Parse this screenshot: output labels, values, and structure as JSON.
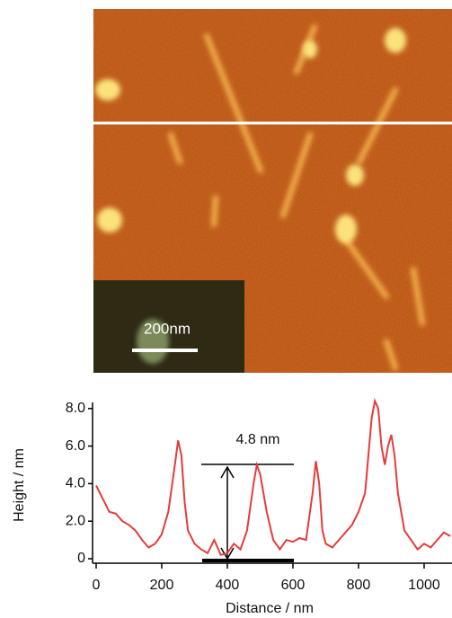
{
  "image": {
    "scale_bar_label": "200nm"
  },
  "chart_data": {
    "type": "line",
    "annotation": "4.8 nm",
    "x_label": "Distance / nm",
    "y_label": "Height / nm",
    "x": [
      0,
      20,
      40,
      60,
      80,
      100,
      120,
      140,
      160,
      180,
      200,
      220,
      240,
      250,
      260,
      270,
      280,
      300,
      320,
      340,
      360,
      380,
      400,
      420,
      440,
      460,
      480,
      490,
      500,
      520,
      540,
      560,
      580,
      600,
      620,
      640,
      660,
      670,
      680,
      690,
      700,
      720,
      740,
      760,
      780,
      800,
      820,
      840,
      850,
      860,
      870,
      880,
      890,
      900,
      910,
      920,
      940,
      960,
      980,
      1000,
      1020,
      1040,
      1060,
      1080
    ],
    "series": [
      {
        "color": "#e63b3b",
        "values": [
          3.9,
          3.2,
          2.5,
          2.4,
          2.0,
          1.8,
          1.5,
          1.0,
          0.6,
          0.8,
          1.3,
          2.5,
          5.0,
          6.3,
          5.5,
          3.0,
          1.5,
          0.8,
          0.5,
          0.3,
          1.0,
          0.2,
          0.3,
          0.8,
          0.5,
          1.5,
          4.0,
          5.0,
          4.5,
          2.5,
          1.0,
          0.5,
          1.0,
          0.9,
          1.1,
          1.0,
          3.5,
          5.2,
          4.0,
          1.5,
          0.8,
          0.6,
          1.0,
          1.4,
          1.8,
          2.5,
          3.5,
          7.5,
          8.4,
          8.0,
          6.0,
          5.0,
          6.0,
          6.6,
          5.5,
          3.5,
          1.5,
          1.0,
          0.5,
          0.8,
          0.6,
          1.0,
          1.4,
          1.2
        ]
      }
    ],
    "xlim": [
      0,
      1085
    ],
    "xticks": [
      0,
      200,
      400,
      600,
      800,
      1000
    ],
    "ylim": [
      -0.2,
      8.3
    ],
    "yticks": [
      {
        "value": 8,
        "label": "8.0"
      },
      {
        "value": 6,
        "label": "6.0"
      },
      {
        "value": 4,
        "label": "4.0"
      },
      {
        "value": 2,
        "label": "2.0"
      },
      0
    ]
  }
}
